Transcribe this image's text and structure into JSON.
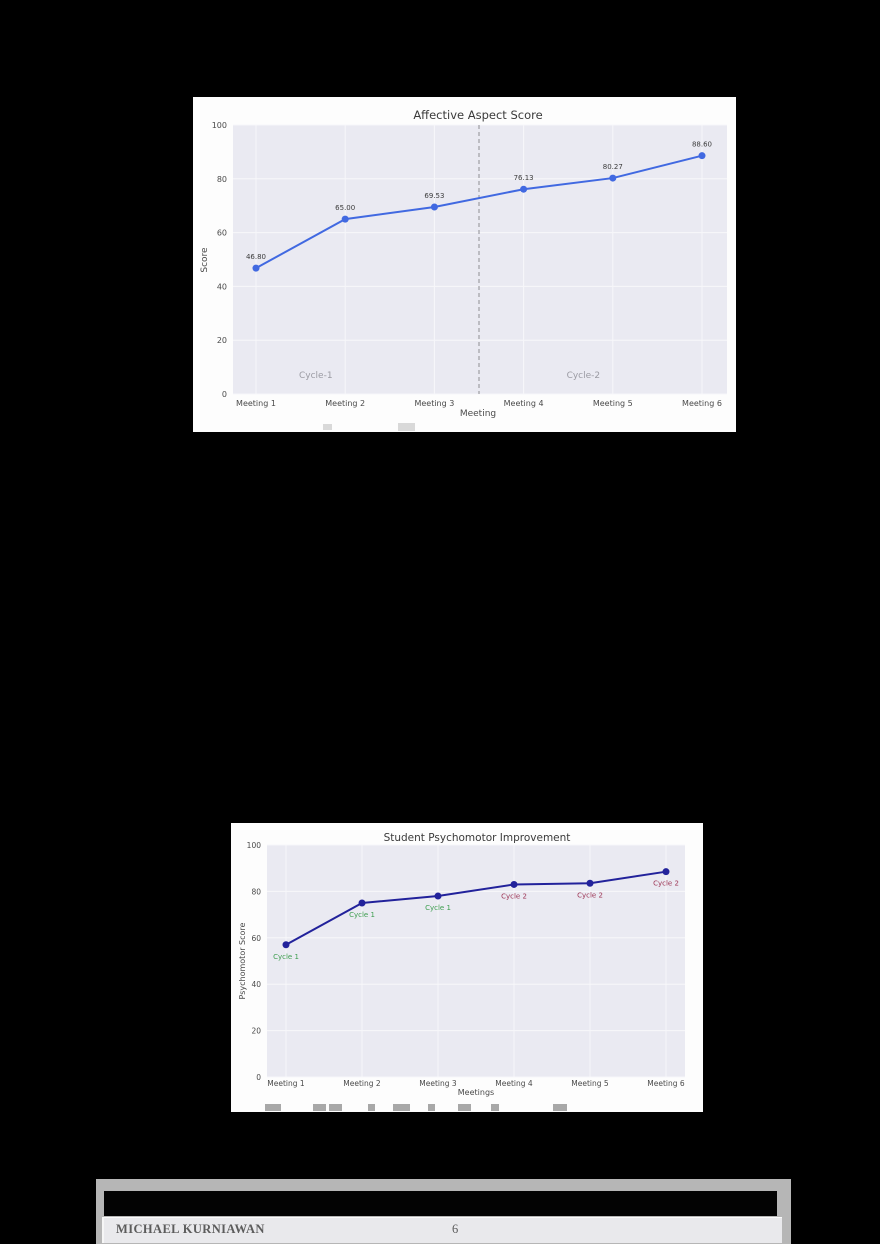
{
  "page": {
    "background": "#000000",
    "panel_background": "#fdfdfd"
  },
  "footer": {
    "author": "MICHAEL KURNIAWAN",
    "page_number": "6"
  },
  "chart_data": [
    {
      "type": "line",
      "title": "Affective Aspect Score",
      "xlabel": "Meeting",
      "ylabel": "Score",
      "categories": [
        "Meeting 1",
        "Meeting 2",
        "Meeting 3",
        "Meeting 4",
        "Meeting 5",
        "Meeting 6"
      ],
      "values": [
        46.8,
        65.0,
        69.53,
        76.13,
        80.27,
        88.6
      ],
      "value_labels": [
        "46.80",
        "65.00",
        "69.53",
        "76.13",
        "80.27",
        "88.60"
      ],
      "ylim": [
        0,
        100
      ],
      "yticks": [
        0,
        20,
        40,
        60,
        80,
        100
      ],
      "grid": true,
      "legend": "none",
      "plot_bg": "#eaeaf2",
      "grid_color": "#f7f7fa",
      "line_color": "#4169e1",
      "label_color": "#3b3b3b",
      "tick_color": "#4a4a4a",
      "annotations": [
        {
          "text": "Cycle-1",
          "cat": 0.67,
          "value": 6,
          "color": "#9b9ba3"
        },
        {
          "text": "Cycle-2",
          "cat": 3.67,
          "value": 6,
          "color": "#9b9ba3"
        }
      ],
      "divider": {
        "cat": 2.5,
        "style": "dashed",
        "color": "#8d8d93"
      }
    },
    {
      "type": "line",
      "title": "Student Psychomotor Improvement",
      "xlabel": "Meetings",
      "ylabel": "Psychomotor Score",
      "categories": [
        "Meeting 1",
        "Meeting 2",
        "Meeting 3",
        "Meeting 4",
        "Meeting 5",
        "Meeting 6"
      ],
      "values": [
        57,
        75,
        78,
        83,
        83.5,
        88.5
      ],
      "point_labels": [
        {
          "text": "Cycle 1",
          "color": "#3c9d4e"
        },
        {
          "text": "Cycle 1",
          "color": "#3c9d4e"
        },
        {
          "text": "Cycle 1",
          "color": "#3c9d4e"
        },
        {
          "text": "Cycle 2",
          "color": "#9c3353"
        },
        {
          "text": "Cycle 2",
          "color": "#9c3353"
        },
        {
          "text": "Cycle 2",
          "color": "#9c3353"
        }
      ],
      "ylim": [
        0,
        100
      ],
      "yticks": [
        0,
        20,
        40,
        60,
        80,
        100
      ],
      "grid": true,
      "legend": "none",
      "plot_bg": "#eaeaf2",
      "grid_color": "#f7f7fa",
      "line_color": "#22229b",
      "tick_color": "#4a4a4a"
    }
  ]
}
